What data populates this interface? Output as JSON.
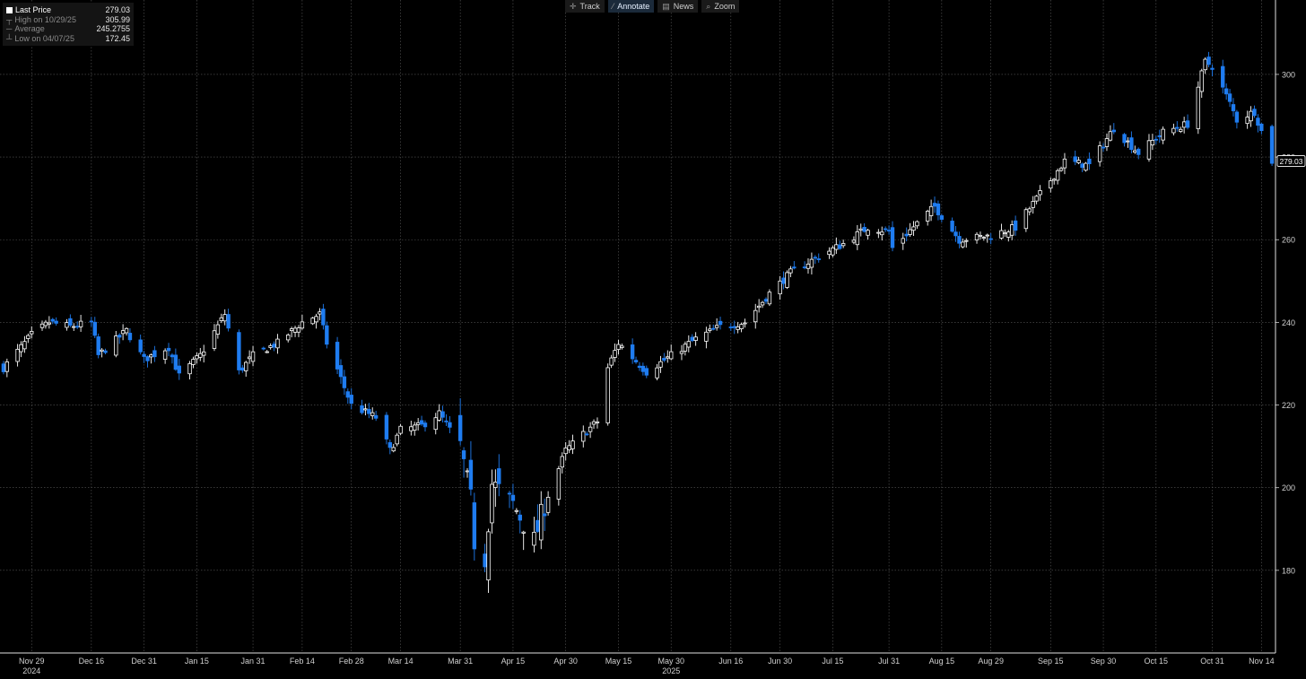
{
  "toolbar": {
    "track": {
      "label": "Track",
      "icon": "crosshair-icon"
    },
    "annotate": {
      "label": "Annotate",
      "icon": "pencil-icon"
    },
    "news": {
      "label": "News",
      "icon": "news-icon"
    },
    "zoom": {
      "label": "Zoom",
      "icon": "magnifier-icon"
    }
  },
  "legend": {
    "last_price_label": "Last Price",
    "last_price_value": "279.03",
    "high_label": "High on 10/29/25",
    "high_value": "305.99",
    "average_label": "Average",
    "average_value": "245.2755",
    "low_label": "Low on 04/07/25",
    "low_value": "172.45"
  },
  "colors": {
    "background": "#000000",
    "up_candle": "#ffffff",
    "down_candle": "#1f7cf0",
    "grid": "#5a5a5a",
    "axis_text": "#d0d0d0"
  },
  "chart_data": {
    "type": "candlestick",
    "y_ticks": [
      180,
      200,
      220,
      240,
      260,
      280,
      300
    ],
    "ylim": [
      160,
      318
    ],
    "x_tick_labels": [
      "Nov 29",
      "Dec 16",
      "Dec 31",
      "Jan 15",
      "Jan 31",
      "Feb 14",
      "Feb 28",
      "Mar 14",
      "Mar 31",
      "Apr 15",
      "Apr 30",
      "May 15",
      "May 30",
      "Jun 16",
      "Jun 30",
      "Jul 15",
      "Jul 31",
      "Aug 15",
      "Aug 29",
      "Sep 15",
      "Sep 30",
      "Oct 15",
      "Oct 31",
      "Nov 14"
    ],
    "year_labels": [
      {
        "text": "2024",
        "at": "Nov 29"
      },
      {
        "text": "2025",
        "at": "May 30"
      }
    ],
    "last_price_tag": "279.03",
    "grid": true,
    "key_points": [
      {
        "date": "2024-11-21",
        "close": 229
      },
      {
        "date": "2024-11-29",
        "close": 237
      },
      {
        "date": "2024-12-04",
        "close": 240
      },
      {
        "date": "2024-12-10",
        "close": 239
      },
      {
        "date": "2024-12-16",
        "close": 240
      },
      {
        "date": "2024-12-18",
        "close": 232
      },
      {
        "date": "2024-12-26",
        "close": 238
      },
      {
        "date": "2024-12-31",
        "close": 231
      },
      {
        "date": "2025-01-07",
        "close": 234
      },
      {
        "date": "2025-01-10",
        "close": 227
      },
      {
        "date": "2025-01-16",
        "close": 232
      },
      {
        "date": "2025-01-23",
        "close": 242
      },
      {
        "date": "2025-01-27",
        "close": 228
      },
      {
        "date": "2025-01-31",
        "close": 232
      },
      {
        "date": "2025-02-07",
        "close": 235
      },
      {
        "date": "2025-02-14",
        "close": 240
      },
      {
        "date": "2025-02-19",
        "close": 242
      },
      {
        "date": "2025-02-21",
        "close": 235
      },
      {
        "date": "2025-02-28",
        "close": 220
      },
      {
        "date": "2025-03-07",
        "close": 217
      },
      {
        "date": "2025-03-11",
        "close": 209
      },
      {
        "date": "2025-03-14",
        "close": 214
      },
      {
        "date": "2025-03-20",
        "close": 215
      },
      {
        "date": "2025-03-25",
        "close": 218
      },
      {
        "date": "2025-03-31",
        "close": 210
      },
      {
        "date": "2025-04-03",
        "close": 197
      },
      {
        "date": "2025-04-04",
        "close": 187
      },
      {
        "date": "2025-04-07",
        "close": 183
      },
      {
        "date": "2025-04-09",
        "close": 201
      },
      {
        "date": "2025-04-15",
        "close": 196
      },
      {
        "date": "2025-04-21",
        "close": 187
      },
      {
        "date": "2025-04-24",
        "close": 196
      },
      {
        "date": "2025-04-30",
        "close": 209
      },
      {
        "date": "2025-05-05",
        "close": 213
      },
      {
        "date": "2025-05-09",
        "close": 216
      },
      {
        "date": "2025-05-12",
        "close": 229
      },
      {
        "date": "2025-05-15",
        "close": 235
      },
      {
        "date": "2025-05-23",
        "close": 228
      },
      {
        "date": "2025-05-30",
        "close": 232
      },
      {
        "date": "2025-06-06",
        "close": 236
      },
      {
        "date": "2025-06-13",
        "close": 239
      },
      {
        "date": "2025-06-20",
        "close": 240
      },
      {
        "date": "2025-06-27",
        "close": 247
      },
      {
        "date": "2025-07-03",
        "close": 252
      },
      {
        "date": "2025-07-11",
        "close": 256
      },
      {
        "date": "2025-07-18",
        "close": 259
      },
      {
        "date": "2025-07-25",
        "close": 263
      },
      {
        "date": "2025-07-31",
        "close": 262
      },
      {
        "date": "2025-08-01",
        "close": 258
      },
      {
        "date": "2025-08-08",
        "close": 264
      },
      {
        "date": "2025-08-13",
        "close": 268
      },
      {
        "date": "2025-08-20",
        "close": 260
      },
      {
        "date": "2025-08-29",
        "close": 261
      },
      {
        "date": "2025-09-05",
        "close": 263
      },
      {
        "date": "2025-09-12",
        "close": 271
      },
      {
        "date": "2025-09-19",
        "close": 279
      },
      {
        "date": "2025-09-26",
        "close": 278
      },
      {
        "date": "2025-10-03",
        "close": 287
      },
      {
        "date": "2025-10-10",
        "close": 281
      },
      {
        "date": "2025-10-17",
        "close": 286
      },
      {
        "date": "2025-10-24",
        "close": 288
      },
      {
        "date": "2025-10-29",
        "close": 303
      },
      {
        "date": "2025-10-31",
        "close": 302
      },
      {
        "date": "2025-11-05",
        "close": 293
      },
      {
        "date": "2025-11-07",
        "close": 289
      },
      {
        "date": "2025-11-12",
        "close": 291
      },
      {
        "date": "2025-11-17",
        "close": 279.03
      }
    ]
  }
}
